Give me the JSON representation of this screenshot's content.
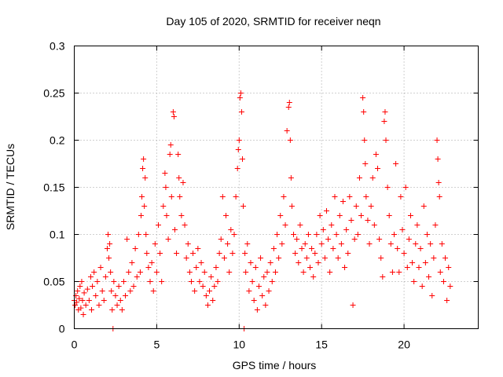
{
  "chart_data": {
    "type": "scatter",
    "title": "Day 105 of 2020, SRMTID for receiver neqn",
    "xlabel": "GPS time / hours",
    "ylabel": "SRMTID / TECUs",
    "xlim": [
      0,
      24.5
    ],
    "ylim": [
      0,
      0.3
    ],
    "x_ticks": [
      0,
      5,
      10,
      15,
      20
    ],
    "x_tick_labels": [
      "0",
      "5",
      "10",
      "15",
      "20"
    ],
    "y_ticks": [
      0,
      0.05,
      0.1,
      0.15,
      0.2,
      0.25,
      0.3
    ],
    "y_tick_labels": [
      "0",
      "0.05",
      "0.1",
      "0.15",
      "0.2",
      "0.25",
      "0.3"
    ],
    "grid": true,
    "marker": "+",
    "color": "#ff0000",
    "series": [
      {
        "name": "SRMTID",
        "points": [
          [
            0.0,
            0.03
          ],
          [
            0.05,
            0.025
          ],
          [
            0.1,
            0.035
          ],
          [
            0.15,
            0.028
          ],
          [
            0.2,
            0.04
          ],
          [
            0.25,
            0.02
          ],
          [
            0.3,
            0.032
          ],
          [
            0.35,
            0.045
          ],
          [
            0.4,
            0.022
          ],
          [
            0.45,
            0.05
          ],
          [
            0.5,
            0.03
          ],
          [
            0.55,
            0.015
          ],
          [
            0.6,
            0.038
          ],
          [
            0.7,
            0.025
          ],
          [
            0.8,
            0.042
          ],
          [
            0.9,
            0.03
          ],
          [
            1.0,
            0.055
          ],
          [
            1.05,
            0.02
          ],
          [
            1.1,
            0.045
          ],
          [
            1.2,
            0.06
          ],
          [
            1.3,
            0.035
          ],
          [
            1.4,
            0.05
          ],
          [
            1.5,
            0.025
          ],
          [
            1.6,
            0.065
          ],
          [
            1.7,
            0.04
          ],
          [
            1.8,
            0.03
          ],
          [
            1.9,
            0.055
          ],
          [
            2.0,
            0.085
          ],
          [
            2.05,
            0.1
          ],
          [
            2.1,
            0.075
          ],
          [
            2.15,
            0.09
          ],
          [
            2.2,
            0.06
          ],
          [
            2.25,
            0.04
          ],
          [
            2.3,
            0.02
          ],
          [
            2.35,
            0.0
          ],
          [
            2.4,
            0.05
          ],
          [
            2.5,
            0.035
          ],
          [
            2.6,
            0.025
          ],
          [
            2.7,
            0.045
          ],
          [
            2.8,
            0.03
          ],
          [
            2.9,
            0.02
          ],
          [
            3.0,
            0.05
          ],
          [
            3.1,
            0.035
          ],
          [
            3.2,
            0.095
          ],
          [
            3.3,
            0.06
          ],
          [
            3.4,
            0.04
          ],
          [
            3.5,
            0.07
          ],
          [
            3.6,
            0.045
          ],
          [
            3.7,
            0.085
          ],
          [
            3.8,
            0.055
          ],
          [
            3.9,
            0.1
          ],
          [
            4.0,
            0.06
          ],
          [
            4.05,
            0.12
          ],
          [
            4.1,
            0.14
          ],
          [
            4.15,
            0.17
          ],
          [
            4.2,
            0.18
          ],
          [
            4.25,
            0.13
          ],
          [
            4.3,
            0.16
          ],
          [
            4.35,
            0.1
          ],
          [
            4.4,
            0.08
          ],
          [
            4.5,
            0.065
          ],
          [
            4.6,
            0.05
          ],
          [
            4.7,
            0.07
          ],
          [
            4.8,
            0.04
          ],
          [
            4.9,
            0.09
          ],
          [
            5.0,
            0.06
          ],
          [
            5.1,
            0.11
          ],
          [
            5.2,
            0.08
          ],
          [
            5.3,
            0.05
          ],
          [
            5.4,
            0.13
          ],
          [
            5.5,
            0.165
          ],
          [
            5.55,
            0.15
          ],
          [
            5.6,
            0.12
          ],
          [
            5.7,
            0.095
          ],
          [
            5.8,
            0.185
          ],
          [
            5.85,
            0.195
          ],
          [
            5.9,
            0.14
          ],
          [
            6.0,
            0.23
          ],
          [
            6.05,
            0.225
          ],
          [
            6.1,
            0.105
          ],
          [
            6.2,
            0.08
          ],
          [
            6.3,
            0.185
          ],
          [
            6.35,
            0.16
          ],
          [
            6.4,
            0.14
          ],
          [
            6.5,
            0.12
          ],
          [
            6.6,
            0.155
          ],
          [
            6.7,
            0.11
          ],
          [
            6.8,
            0.075
          ],
          [
            6.9,
            0.09
          ],
          [
            7.0,
            0.06
          ],
          [
            7.1,
            0.05
          ],
          [
            7.2,
            0.08
          ],
          [
            7.3,
            0.04
          ],
          [
            7.4,
            0.065
          ],
          [
            7.5,
            0.085
          ],
          [
            7.6,
            0.05
          ],
          [
            7.7,
            0.07
          ],
          [
            7.8,
            0.045
          ],
          [
            7.9,
            0.06
          ],
          [
            8.0,
            0.035
          ],
          [
            8.1,
            0.025
          ],
          [
            8.2,
            0.04
          ],
          [
            8.3,
            0.055
          ],
          [
            8.4,
            0.03
          ],
          [
            8.5,
            0.045
          ],
          [
            8.6,
            0.065
          ],
          [
            8.7,
            0.05
          ],
          [
            8.8,
            0.08
          ],
          [
            8.9,
            0.095
          ],
          [
            9.0,
            0.14
          ],
          [
            9.1,
            0.075
          ],
          [
            9.2,
            0.12
          ],
          [
            9.3,
            0.09
          ],
          [
            9.4,
            0.06
          ],
          [
            9.5,
            0.105
          ],
          [
            9.6,
            0.08
          ],
          [
            9.7,
            0.1
          ],
          [
            9.8,
            0.14
          ],
          [
            9.9,
            0.17
          ],
          [
            9.95,
            0.19
          ],
          [
            10.0,
            0.2
          ],
          [
            10.05,
            0.245
          ],
          [
            10.1,
            0.25
          ],
          [
            10.15,
            0.23
          ],
          [
            10.2,
            0.18
          ],
          [
            10.25,
            0.13
          ],
          [
            10.3,
            0.0
          ],
          [
            10.35,
            0.08
          ],
          [
            10.4,
            0.06
          ],
          [
            10.5,
            0.09
          ],
          [
            10.6,
            0.04
          ],
          [
            10.7,
            0.07
          ],
          [
            10.8,
            0.05
          ],
          [
            10.9,
            0.03
          ],
          [
            11.0,
            0.065
          ],
          [
            11.1,
            0.02
          ],
          [
            11.2,
            0.045
          ],
          [
            11.3,
            0.075
          ],
          [
            11.4,
            0.035
          ],
          [
            11.5,
            0.055
          ],
          [
            11.6,
            0.025
          ],
          [
            11.7,
            0.06
          ],
          [
            11.8,
            0.04
          ],
          [
            11.9,
            0.07
          ],
          [
            12.0,
            0.05
          ],
          [
            12.1,
            0.085
          ],
          [
            12.2,
            0.06
          ],
          [
            12.3,
            0.1
          ],
          [
            12.4,
            0.075
          ],
          [
            12.5,
            0.12
          ],
          [
            12.6,
            0.09
          ],
          [
            12.7,
            0.14
          ],
          [
            12.8,
            0.11
          ],
          [
            12.9,
            0.21
          ],
          [
            13.0,
            0.235
          ],
          [
            13.05,
            0.24
          ],
          [
            13.1,
            0.2
          ],
          [
            13.15,
            0.16
          ],
          [
            13.2,
            0.13
          ],
          [
            13.3,
            0.1
          ],
          [
            13.4,
            0.08
          ],
          [
            13.5,
            0.095
          ],
          [
            13.6,
            0.07
          ],
          [
            13.7,
            0.11
          ],
          [
            13.8,
            0.085
          ],
          [
            13.9,
            0.06
          ],
          [
            14.0,
            0.09
          ],
          [
            14.1,
            0.075
          ],
          [
            14.2,
            0.1
          ],
          [
            14.3,
            0.065
          ],
          [
            14.4,
            0.085
          ],
          [
            14.5,
            0.055
          ],
          [
            14.6,
            0.08
          ],
          [
            14.7,
            0.1
          ],
          [
            14.8,
            0.07
          ],
          [
            14.9,
            0.12
          ],
          [
            15.0,
            0.09
          ],
          [
            15.1,
            0.105
          ],
          [
            15.2,
            0.075
          ],
          [
            15.3,
            0.125
          ],
          [
            15.4,
            0.095
          ],
          [
            15.5,
            0.06
          ],
          [
            15.6,
            0.11
          ],
          [
            15.7,
            0.085
          ],
          [
            15.8,
            0.14
          ],
          [
            15.9,
            0.1
          ],
          [
            16.0,
            0.075
          ],
          [
            16.1,
            0.12
          ],
          [
            16.2,
            0.09
          ],
          [
            16.3,
            0.135
          ],
          [
            16.4,
            0.065
          ],
          [
            16.5,
            0.105
          ],
          [
            16.6,
            0.08
          ],
          [
            16.7,
            0.14
          ],
          [
            16.8,
            0.115
          ],
          [
            16.9,
            0.025
          ],
          [
            17.0,
            0.095
          ],
          [
            17.1,
            0.13
          ],
          [
            17.2,
            0.1
          ],
          [
            17.3,
            0.16
          ],
          [
            17.4,
            0.12
          ],
          [
            17.5,
            0.245
          ],
          [
            17.55,
            0.23
          ],
          [
            17.6,
            0.2
          ],
          [
            17.65,
            0.175
          ],
          [
            17.7,
            0.14
          ],
          [
            17.8,
            0.115
          ],
          [
            17.9,
            0.09
          ],
          [
            18.0,
            0.13
          ],
          [
            18.1,
            0.16
          ],
          [
            18.2,
            0.11
          ],
          [
            18.3,
            0.185
          ],
          [
            18.4,
            0.17
          ],
          [
            18.5,
            0.095
          ],
          [
            18.6,
            0.075
          ],
          [
            18.7,
            0.055
          ],
          [
            18.8,
            0.22
          ],
          [
            18.85,
            0.23
          ],
          [
            18.9,
            0.2
          ],
          [
            19.0,
            0.15
          ],
          [
            19.1,
            0.12
          ],
          [
            19.2,
            0.09
          ],
          [
            19.3,
            0.06
          ],
          [
            19.4,
            0.1
          ],
          [
            19.5,
            0.175
          ],
          [
            19.6,
            0.085
          ],
          [
            19.7,
            0.06
          ],
          [
            19.8,
            0.14
          ],
          [
            19.9,
            0.105
          ],
          [
            20.0,
            0.08
          ],
          [
            20.1,
            0.15
          ],
          [
            20.2,
            0.065
          ],
          [
            20.3,
            0.095
          ],
          [
            20.4,
            0.12
          ],
          [
            20.5,
            0.07
          ],
          [
            20.6,
            0.05
          ],
          [
            20.7,
            0.09
          ],
          [
            20.8,
            0.11
          ],
          [
            20.9,
            0.065
          ],
          [
            21.0,
            0.085
          ],
          [
            21.1,
            0.045
          ],
          [
            21.2,
            0.13
          ],
          [
            21.3,
            0.07
          ],
          [
            21.4,
            0.1
          ],
          [
            21.5,
            0.055
          ],
          [
            21.6,
            0.09
          ],
          [
            21.7,
            0.035
          ],
          [
            21.8,
            0.075
          ],
          [
            21.9,
            0.11
          ],
          [
            22.0,
            0.2
          ],
          [
            22.05,
            0.18
          ],
          [
            22.1,
            0.155
          ],
          [
            22.15,
            0.14
          ],
          [
            22.2,
            0.06
          ],
          [
            22.3,
            0.09
          ],
          [
            22.4,
            0.05
          ],
          [
            22.5,
            0.075
          ],
          [
            22.6,
            0.03
          ],
          [
            22.7,
            0.065
          ],
          [
            22.8,
            0.045
          ]
        ]
      }
    ]
  }
}
